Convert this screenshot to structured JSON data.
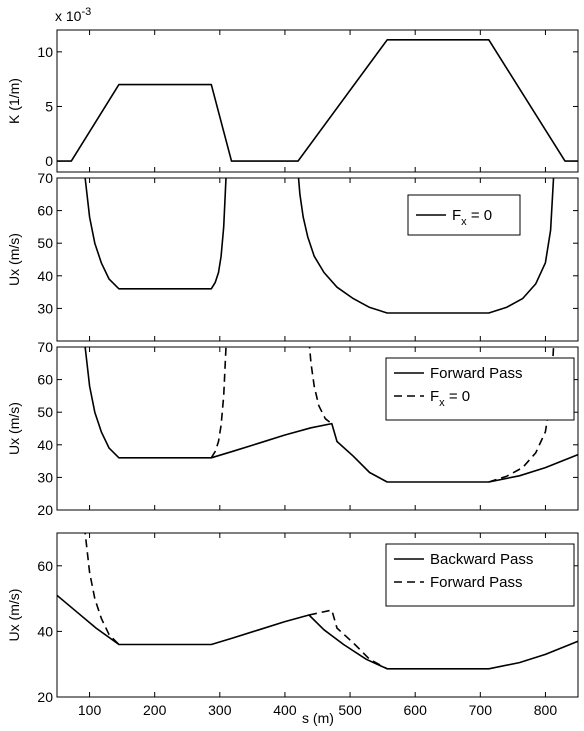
{
  "figure": {
    "xlabel": "s (m)"
  },
  "chart_data": [
    {
      "type": "line",
      "ylabel": "K (1/m)",
      "y_exponent_label": "x 10",
      "y_exponent": "-3",
      "xlim": [
        50,
        850
      ],
      "ylim": [
        -1,
        12
      ],
      "xticks": [
        100,
        200,
        300,
        400,
        500,
        600,
        700,
        800
      ],
      "show_xtick_labels": false,
      "yticks": [
        0,
        5,
        10
      ],
      "ytick_labels": [
        "0",
        "5",
        "10"
      ],
      "legend": null,
      "series": [
        {
          "name": "",
          "style": "solid",
          "x": [
            50,
            72,
            145,
            287,
            318,
            420,
            557,
            713,
            830,
            850
          ],
          "y": [
            0,
            0,
            7,
            7,
            0,
            0,
            11.1,
            11.1,
            0,
            0
          ]
        }
      ]
    },
    {
      "type": "line",
      "ylabel": "Ux (m/s)",
      "xlim": [
        50,
        850
      ],
      "ylim": [
        20,
        70
      ],
      "xticks": [
        100,
        200,
        300,
        400,
        500,
        600,
        700,
        800
      ],
      "show_xtick_labels": false,
      "yticks": [
        30,
        40,
        50,
        60,
        70
      ],
      "ytick_labels": [
        "30",
        "40",
        "50",
        "60",
        "70"
      ],
      "legend": {
        "position": "top-right",
        "entries": [
          {
            "style": "solid",
            "label": "F",
            "sub": "x",
            "suffix": " = 0"
          }
        ]
      },
      "series": [
        {
          "name": "F_x = 0",
          "style": "solid",
          "x": [
            92,
            96,
            100,
            108,
            118,
            130,
            145,
            287,
            293,
            298,
            302,
            306,
            310
          ],
          "y": [
            72,
            65,
            58,
            50,
            44,
            39,
            36,
            36,
            38,
            41,
            46,
            55,
            72
          ]
        },
        {
          "name": "F_x = 0",
          "style": "solid",
          "x": [
            420,
            423,
            428,
            435,
            445,
            460,
            480,
            505,
            530,
            557,
            713,
            740,
            765,
            785,
            800,
            808,
            813
          ],
          "y": [
            72,
            65,
            58,
            52,
            46,
            41,
            36.5,
            33,
            30.3,
            28.6,
            28.6,
            30.3,
            33,
            37.5,
            44,
            54,
            72
          ]
        }
      ]
    },
    {
      "type": "line",
      "ylabel": "Ux (m/s)",
      "xlim": [
        50,
        850
      ],
      "ylim": [
        20,
        70
      ],
      "xticks": [
        100,
        200,
        300,
        400,
        500,
        600,
        700,
        800
      ],
      "show_xtick_labels": false,
      "yticks": [
        20,
        30,
        40,
        50,
        60,
        70
      ],
      "ytick_labels": [
        "20",
        "30",
        "40",
        "50",
        "60",
        "70"
      ],
      "legend": {
        "position": "top-right",
        "entries": [
          {
            "style": "solid",
            "label": "Forward Pass",
            "sub": "",
            "suffix": ""
          },
          {
            "style": "dashed",
            "label": "F",
            "sub": "x",
            "suffix": " = 0"
          }
        ]
      },
      "series": [
        {
          "name": "Forward Pass",
          "style": "solid",
          "x": [
            92,
            96,
            100,
            108,
            118,
            130,
            145,
            287,
            320,
            360,
            400,
            440,
            472,
            480,
            505,
            530,
            557,
            713,
            760,
            800,
            850
          ],
          "y": [
            72,
            65,
            58,
            50,
            44,
            39,
            36,
            36,
            38,
            40.5,
            43,
            45.2,
            46.5,
            41,
            36.5,
            31.5,
            28.6,
            28.6,
            30.5,
            33,
            37
          ]
        },
        {
          "name": "F_x = 0",
          "style": "dashed",
          "x": [
            287,
            293,
            298,
            302,
            306,
            310
          ],
          "y": [
            36,
            38,
            41,
            46,
            55,
            72
          ]
        },
        {
          "name": "F_x = 0",
          "style": "dashed",
          "x": [
            437,
            440,
            445,
            452,
            462,
            472
          ],
          "y": [
            72,
            65,
            58,
            52,
            48,
            46.5
          ]
        },
        {
          "name": "F_x = 0",
          "style": "dashed",
          "x": [
            713,
            740,
            765,
            785,
            800,
            808,
            813
          ],
          "y": [
            28.6,
            30.3,
            33,
            37.5,
            44,
            54,
            72
          ]
        }
      ]
    },
    {
      "type": "line",
      "ylabel": "Ux (m/s)",
      "xlim": [
        50,
        850
      ],
      "ylim": [
        20,
        70
      ],
      "xticks": [
        100,
        200,
        300,
        400,
        500,
        600,
        700,
        800
      ],
      "show_xtick_labels": true,
      "yticks": [
        20,
        40,
        60
      ],
      "ytick_labels": [
        "20",
        "40",
        "60"
      ],
      "legend": {
        "position": "top-right",
        "entries": [
          {
            "style": "solid",
            "label": "Backward Pass",
            "sub": "",
            "suffix": ""
          },
          {
            "style": "dashed",
            "label": "Forward Pass",
            "sub": "",
            "suffix": ""
          }
        ]
      },
      "series": [
        {
          "name": "Backward Pass",
          "style": "solid",
          "x": [
            50,
            80,
            110,
            145,
            287,
            320,
            360,
            400,
            437,
            460,
            490,
            525,
            557,
            713,
            760,
            800,
            850
          ],
          "y": [
            51,
            46,
            41,
            36,
            36,
            38,
            40.5,
            43,
            45,
            40.5,
            36,
            31.5,
            28.6,
            28.6,
            30.5,
            33,
            37
          ]
        },
        {
          "name": "Forward Pass",
          "style": "dashed",
          "x": [
            92,
            96,
            100,
            108,
            118,
            130,
            145
          ],
          "y": [
            72,
            65,
            58,
            50,
            44,
            39,
            36
          ]
        },
        {
          "name": "Forward Pass",
          "style": "dashed",
          "x": [
            437,
            472,
            480,
            505,
            530,
            557
          ],
          "y": [
            45,
            46.5,
            41,
            36.5,
            31.5,
            28.6
          ]
        }
      ]
    }
  ]
}
